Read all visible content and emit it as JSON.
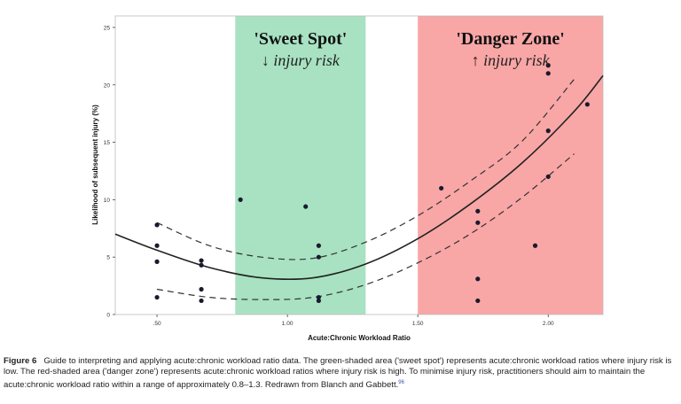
{
  "chart_data": {
    "type": "scatter",
    "xlabel": "Acute:Chronic Workload Ratio",
    "ylabel": "Likelihood of subsequent injury (%)",
    "xlim": [
      0.34,
      2.21
    ],
    "ylim": [
      0,
      26
    ],
    "xticks": [
      {
        "value": 0.5,
        "label": ".50"
      },
      {
        "value": 1.0,
        "label": "1.00"
      },
      {
        "value": 1.5,
        "label": "1.50"
      },
      {
        "value": 2.0,
        "label": "2.00"
      }
    ],
    "yticks": [
      0,
      5,
      10,
      15,
      20,
      25
    ],
    "zones": [
      {
        "name": "sweet-spot",
        "x_range": [
          0.8,
          1.3
        ],
        "color": "#a8e2c2",
        "title": "'Sweet Spot'",
        "subtitle": "↓ injury risk"
      },
      {
        "name": "danger-zone",
        "x_range": [
          1.5,
          2.21
        ],
        "color": "#f9a6a6",
        "title": "'Danger Zone'",
        "subtitle": "↑ injury risk"
      }
    ],
    "points": [
      {
        "x": 0.5,
        "y": 7.8
      },
      {
        "x": 0.5,
        "y": 6.0
      },
      {
        "x": 0.5,
        "y": 4.6
      },
      {
        "x": 0.5,
        "y": 1.5
      },
      {
        "x": 0.67,
        "y": 4.7
      },
      {
        "x": 0.67,
        "y": 4.3
      },
      {
        "x": 0.67,
        "y": 2.2
      },
      {
        "x": 0.67,
        "y": 1.2
      },
      {
        "x": 0.82,
        "y": 10.0
      },
      {
        "x": 1.07,
        "y": 9.4
      },
      {
        "x": 1.12,
        "y": 6.0
      },
      {
        "x": 1.12,
        "y": 5.0
      },
      {
        "x": 1.12,
        "y": 1.5
      },
      {
        "x": 1.12,
        "y": 1.2
      },
      {
        "x": 1.59,
        "y": 11.0
      },
      {
        "x": 1.73,
        "y": 9.0
      },
      {
        "x": 1.73,
        "y": 8.0
      },
      {
        "x": 1.73,
        "y": 3.1
      },
      {
        "x": 1.73,
        "y": 1.2
      },
      {
        "x": 1.95,
        "y": 6.0
      },
      {
        "x": 2.0,
        "y": 21.7
      },
      {
        "x": 2.0,
        "y": 21.0
      },
      {
        "x": 2.0,
        "y": 16.0
      },
      {
        "x": 2.0,
        "y": 12.0
      },
      {
        "x": 2.15,
        "y": 18.3
      }
    ],
    "fit_curve": {
      "x": [
        0.34,
        0.5,
        0.7,
        0.9,
        1.1,
        1.3,
        1.5,
        1.7,
        1.9,
        2.1,
        2.21
      ],
      "y": [
        7.0,
        5.6,
        4.1,
        3.2,
        3.2,
        4.4,
        6.6,
        9.6,
        13.2,
        17.7,
        20.8
      ]
    },
    "upper_ci": {
      "x": [
        0.5,
        0.7,
        0.9,
        1.1,
        1.3,
        1.5,
        1.7,
        1.9,
        2.1
      ],
      "y": [
        8.0,
        6.0,
        5.0,
        4.9,
        6.3,
        8.6,
        11.6,
        15.1,
        20.5
      ]
    },
    "lower_ci": {
      "x": [
        0.5,
        0.7,
        0.9,
        1.1,
        1.3,
        1.5,
        1.7,
        1.9,
        2.1
      ],
      "y": [
        2.2,
        1.5,
        1.3,
        1.5,
        2.6,
        4.5,
        7.0,
        10.2,
        14.0
      ]
    }
  },
  "caption": {
    "label": "Figure 6",
    "text": "Guide to interpreting and applying acute:chronic workload ratio data. The green-shaded area ('sweet spot') represents acute:chronic workload ratios where injury risk is low. The red-shaded area ('danger zone') represents acute:chronic workload ratios where injury risk is high. To minimise injury risk, practitioners should aim to maintain the acute:chronic workload ratio within a range of approximately 0.8–1.3. Redrawn from Blanch and Gabbett.",
    "ref": "96"
  }
}
